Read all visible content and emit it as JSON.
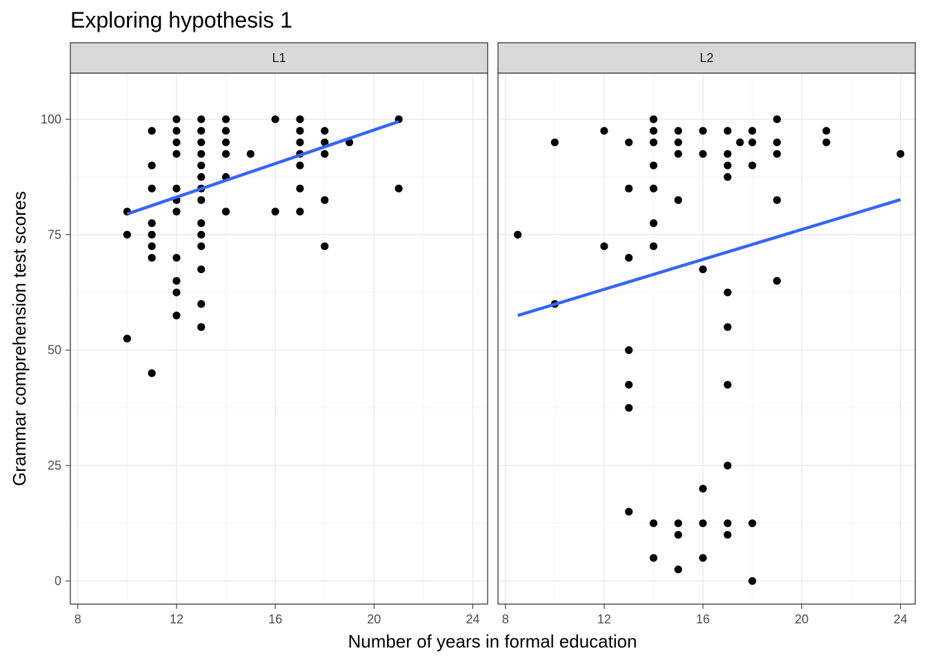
{
  "chart_data": {
    "type": "scatter",
    "title": "Exploring hypothesis 1",
    "xlabel": "Number of years in formal education",
    "ylabel": "Grammar comprehension test scores",
    "xlim": [
      7.7,
      24.6
    ],
    "ylim": [
      -5,
      110
    ],
    "x_ticks": [
      8,
      12,
      16,
      20,
      24
    ],
    "y_ticks": [
      0,
      25,
      50,
      75,
      100
    ],
    "grid": true,
    "facets": [
      {
        "label": "L1",
        "points": [
          [
            10,
            80
          ],
          [
            10,
            75
          ],
          [
            10,
            52.5
          ],
          [
            11,
            97.5
          ],
          [
            11,
            90
          ],
          [
            11,
            85
          ],
          [
            11,
            77.5
          ],
          [
            11,
            75
          ],
          [
            11,
            72.5
          ],
          [
            11,
            70
          ],
          [
            11,
            45
          ],
          [
            12,
            100
          ],
          [
            12,
            97.5
          ],
          [
            12,
            95
          ],
          [
            12,
            92.5
          ],
          [
            12,
            85
          ],
          [
            12,
            82.5
          ],
          [
            12,
            80
          ],
          [
            12,
            70
          ],
          [
            12,
            65
          ],
          [
            12,
            62.5
          ],
          [
            12,
            57.5
          ],
          [
            13,
            100
          ],
          [
            13,
            97.5
          ],
          [
            13,
            95
          ],
          [
            13,
            92.5
          ],
          [
            13,
            90
          ],
          [
            13,
            87.5
          ],
          [
            13,
            85
          ],
          [
            13,
            82.5
          ],
          [
            13,
            77.5
          ],
          [
            13,
            75
          ],
          [
            13,
            72.5
          ],
          [
            13,
            67.5
          ],
          [
            13,
            60
          ],
          [
            13,
            55
          ],
          [
            14,
            100
          ],
          [
            14,
            97.5
          ],
          [
            14,
            95
          ],
          [
            14,
            92.5
          ],
          [
            14,
            87.5
          ],
          [
            14,
            80
          ],
          [
            15,
            92.5
          ],
          [
            16,
            100
          ],
          [
            16,
            80
          ],
          [
            17,
            100
          ],
          [
            17,
            97.5
          ],
          [
            17,
            95
          ],
          [
            17,
            92.5
          ],
          [
            17,
            90
          ],
          [
            17,
            85
          ],
          [
            17,
            80
          ],
          [
            18,
            97.5
          ],
          [
            18,
            95
          ],
          [
            18,
            92.5
          ],
          [
            18,
            82.5
          ],
          [
            18,
            72.5
          ],
          [
            19,
            95
          ],
          [
            21,
            100
          ],
          [
            21,
            85
          ]
        ],
        "fit": {
          "x": [
            10,
            21
          ],
          "y": [
            79.5,
            99.5
          ]
        }
      },
      {
        "label": "L2",
        "points": [
          [
            8.5,
            75
          ],
          [
            10,
            95
          ],
          [
            10,
            60
          ],
          [
            12,
            97.5
          ],
          [
            12,
            72.5
          ],
          [
            13,
            95
          ],
          [
            13,
            85
          ],
          [
            13,
            70
          ],
          [
            13,
            50
          ],
          [
            13,
            42.5
          ],
          [
            13,
            37.5
          ],
          [
            13,
            15
          ],
          [
            14,
            100
          ],
          [
            14,
            97.5
          ],
          [
            14,
            95
          ],
          [
            14,
            90
          ],
          [
            14,
            85
          ],
          [
            14,
            77.5
          ],
          [
            14,
            72.5
          ],
          [
            14,
            12.5
          ],
          [
            14,
            5
          ],
          [
            15,
            97.5
          ],
          [
            15,
            95
          ],
          [
            15,
            92.5
          ],
          [
            15,
            82.5
          ],
          [
            15,
            12.5
          ],
          [
            15,
            10
          ],
          [
            15,
            2.5
          ],
          [
            16,
            97.5
          ],
          [
            16,
            92.5
          ],
          [
            16,
            67.5
          ],
          [
            16,
            20
          ],
          [
            16,
            12.5
          ],
          [
            16,
            5
          ],
          [
            17,
            97.5
          ],
          [
            17,
            92.5
          ],
          [
            17,
            90
          ],
          [
            17,
            87.5
          ],
          [
            17,
            62.5
          ],
          [
            17,
            55
          ],
          [
            17,
            42.5
          ],
          [
            17,
            25
          ],
          [
            17,
            12.5
          ],
          [
            17,
            10
          ],
          [
            17.5,
            95
          ],
          [
            18,
            97.5
          ],
          [
            18,
            95
          ],
          [
            18,
            90
          ],
          [
            18,
            12.5
          ],
          [
            18,
            0
          ],
          [
            19,
            100
          ],
          [
            19,
            95
          ],
          [
            19,
            92.5
          ],
          [
            19,
            82.5
          ],
          [
            19,
            65
          ],
          [
            21,
            97.5
          ],
          [
            21,
            95
          ],
          [
            24,
            92.5
          ]
        ],
        "fit": {
          "x": [
            8.5,
            24
          ],
          "y": [
            57.5,
            82.6
          ]
        }
      }
    ],
    "colors": {
      "point": "#000000",
      "fit_line": "#3366ff",
      "strip_fill": "#d9d9d9",
      "panel_border": "#333333",
      "grid_major": "#ebebeb",
      "grid_minor": "#f5f5f5"
    }
  }
}
